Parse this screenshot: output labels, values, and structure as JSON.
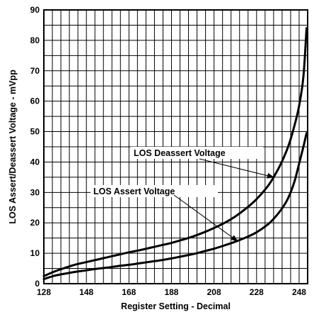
{
  "chart_data": {
    "type": "line",
    "xlabel": "Register Setting - Decimal",
    "ylabel": "LOS Assert/Deassert Voltage - mVpp",
    "xlim": [
      128,
      252
    ],
    "ylim": [
      0,
      90
    ],
    "x_ticks": [
      "128",
      "148",
      "168",
      "188",
      "208",
      "228",
      "248"
    ],
    "y_ticks": [
      "0",
      "10",
      "20",
      "30",
      "40",
      "50",
      "60",
      "70",
      "80",
      "90"
    ],
    "grid": true,
    "series": [
      {
        "name": "LOS Deassert Voltage",
        "x": [
          128,
          133,
          138,
          143,
          148,
          153,
          158,
          163,
          168,
          173,
          178,
          183,
          188,
          193,
          198,
          203,
          208,
          213,
          218,
          223,
          228,
          233,
          236,
          239,
          242,
          244,
          246,
          248,
          250,
          251.5
        ],
        "y": [
          2.5,
          4.0,
          5.2,
          6.3,
          7.1,
          7.9,
          8.7,
          9.5,
          10.3,
          11.0,
          11.8,
          12.6,
          13.4,
          14.4,
          15.5,
          16.8,
          18.3,
          20.0,
          22.1,
          24.7,
          27.8,
          31.8,
          35.0,
          38.8,
          43.5,
          47.5,
          52.5,
          58.5,
          68.0,
          84.0
        ]
      },
      {
        "name": "LOS Assert Voltage",
        "x": [
          128,
          133,
          138,
          143,
          148,
          153,
          158,
          163,
          168,
          173,
          178,
          183,
          188,
          193,
          198,
          203,
          208,
          213,
          218,
          223,
          228,
          233,
          236,
          239,
          242,
          244,
          246,
          248,
          250,
          251.5
        ],
        "y": [
          1.5,
          2.6,
          3.3,
          3.9,
          4.4,
          4.9,
          5.3,
          5.8,
          6.2,
          6.7,
          7.2,
          7.7,
          8.3,
          9.0,
          9.7,
          10.6,
          11.5,
          12.6,
          13.8,
          15.2,
          16.9,
          19.3,
          21.3,
          23.8,
          27.0,
          30.0,
          34.0,
          39.5,
          45.0,
          49.5
        ]
      }
    ],
    "annotations": [
      {
        "text": "LOS Deassert Voltage",
        "series": 0,
        "arrow_to": [
          236,
          35
        ]
      },
      {
        "text": "LOS Assert Voltage",
        "series": 1,
        "arrow_to": [
          219,
          14
        ]
      }
    ]
  }
}
